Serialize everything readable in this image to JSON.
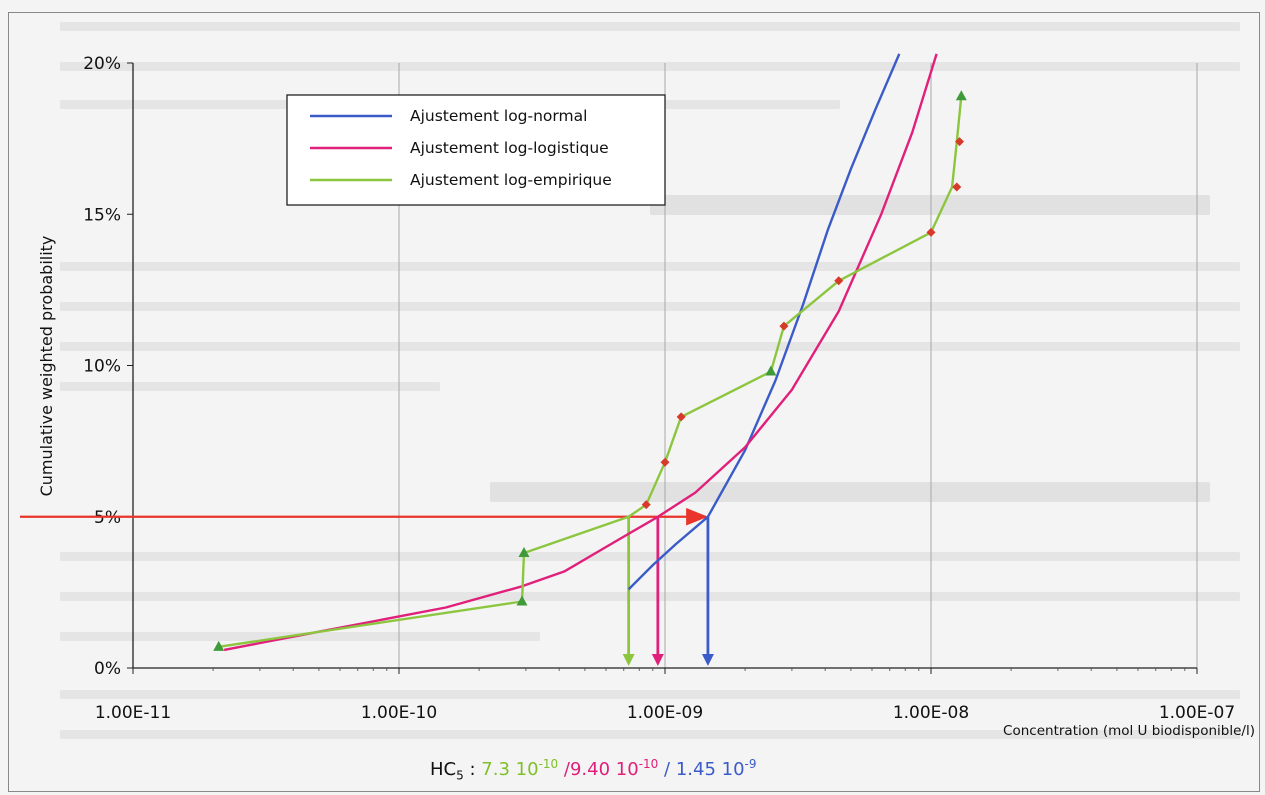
{
  "chart_data": {
    "type": "line",
    "xscale": "log",
    "xlim": [
      1e-11,
      1e-07
    ],
    "ylim": [
      0,
      0.2
    ],
    "x_tick_labels": [
      "1.00E-11",
      "1.00E-10",
      "1.00E-09",
      "1.00E-08",
      "1.00E-07"
    ],
    "x_ticks": [
      1e-11,
      1e-10,
      1e-09,
      1e-08,
      1e-07
    ],
    "y_tick_labels": [
      "0%",
      "5%",
      "10%",
      "15%",
      "20%"
    ],
    "y_ticks": [
      0,
      0.05,
      0.1,
      0.15,
      0.2
    ],
    "ylabel": "Cumulative weighted probability",
    "xlabel": "Concentration (mol U biodisponible/l)",
    "grid": "vertical",
    "legend_position": "top-left",
    "colors": {
      "normal": "#3a5bc8",
      "logistic": "#e0207a",
      "empirical": "#8cc63f",
      "marker_red": "#d83a2a",
      "marker_green": "#3f9a3a",
      "arrow": "#e8342a"
    },
    "series": [
      {
        "name": "Ajustement log-normal",
        "color": "#3a5bc8",
        "x": [
          7.3e-10,
          9e-10,
          1.1e-09,
          1.45e-09,
          2e-09,
          2.6e-09,
          3.3e-09,
          4.1e-09,
          5e-09,
          6.2e-09,
          7.6e-09
        ],
        "y": [
          0.026,
          0.034,
          0.041,
          0.05,
          0.072,
          0.095,
          0.12,
          0.145,
          0.165,
          0.185,
          0.203
        ]
      },
      {
        "name": "Ajustement log-logistique",
        "color": "#e0207a",
        "x": [
          2.2e-11,
          5e-11,
          1.5e-10,
          2.9e-10,
          4.2e-10,
          6e-10,
          9.4e-10,
          1.3e-09,
          2e-09,
          3e-09,
          4.5e-09,
          6.5e-09,
          8.5e-09,
          1.05e-08
        ],
        "y": [
          0.006,
          0.012,
          0.02,
          0.027,
          0.032,
          0.04,
          0.05,
          0.058,
          0.073,
          0.092,
          0.118,
          0.15,
          0.177,
          0.203
        ]
      },
      {
        "name": "Ajustement log-empirique",
        "color": "#8cc63f",
        "x": [
          2.1e-11,
          2.9e-10,
          2.95e-10,
          7.3e-10,
          8.5e-10,
          1e-09,
          1.15e-09,
          2.5e-09,
          2.8e-09,
          4.5e-09,
          1e-08,
          1.2e-08,
          1.25e-08,
          1.3e-08
        ],
        "y": [
          0.007,
          0.022,
          0.038,
          0.05,
          0.054,
          0.068,
          0.083,
          0.098,
          0.113,
          0.128,
          0.144,
          0.159,
          0.174,
          0.189
        ]
      }
    ],
    "red_diamonds": {
      "x": [
        8.5e-10,
        1e-09,
        1.15e-09,
        2.8e-09,
        4.5e-09,
        1e-08,
        1.25e-08,
        1.28e-08
      ],
      "y": [
        0.054,
        0.068,
        0.083,
        0.113,
        0.128,
        0.144,
        0.159,
        0.174
      ]
    },
    "green_triangles": {
      "x": [
        2.1e-11,
        2.9e-10,
        2.95e-10,
        2.5e-09,
        1.3e-08
      ],
      "y": [
        0.007,
        0.022,
        0.038,
        0.098,
        0.189
      ]
    },
    "annotation": {
      "horizontal_arrow": {
        "from_x": 1e-11,
        "to_x": 1.45e-09,
        "y": 0.05
      },
      "down_arrows": [
        {
          "x": 7.3e-10,
          "color": "#8cc63f"
        },
        {
          "x": 9.4e-10,
          "color": "#e0207a"
        },
        {
          "x": 1.45e-09,
          "color": "#3a5bc8"
        }
      ]
    },
    "hc5": {
      "label": "HC",
      "sub": "5",
      "sep": ":",
      "values": [
        {
          "mant": "7.3 10",
          "exp": "-10",
          "color": "#7fbf2a"
        },
        {
          "mant": "/9.40 10",
          "exp": "-10",
          "color": "#e0207a"
        },
        {
          "mant": "/ 1.45 10",
          "exp": "-9",
          "color": "#3a5bc8"
        }
      ]
    }
  }
}
